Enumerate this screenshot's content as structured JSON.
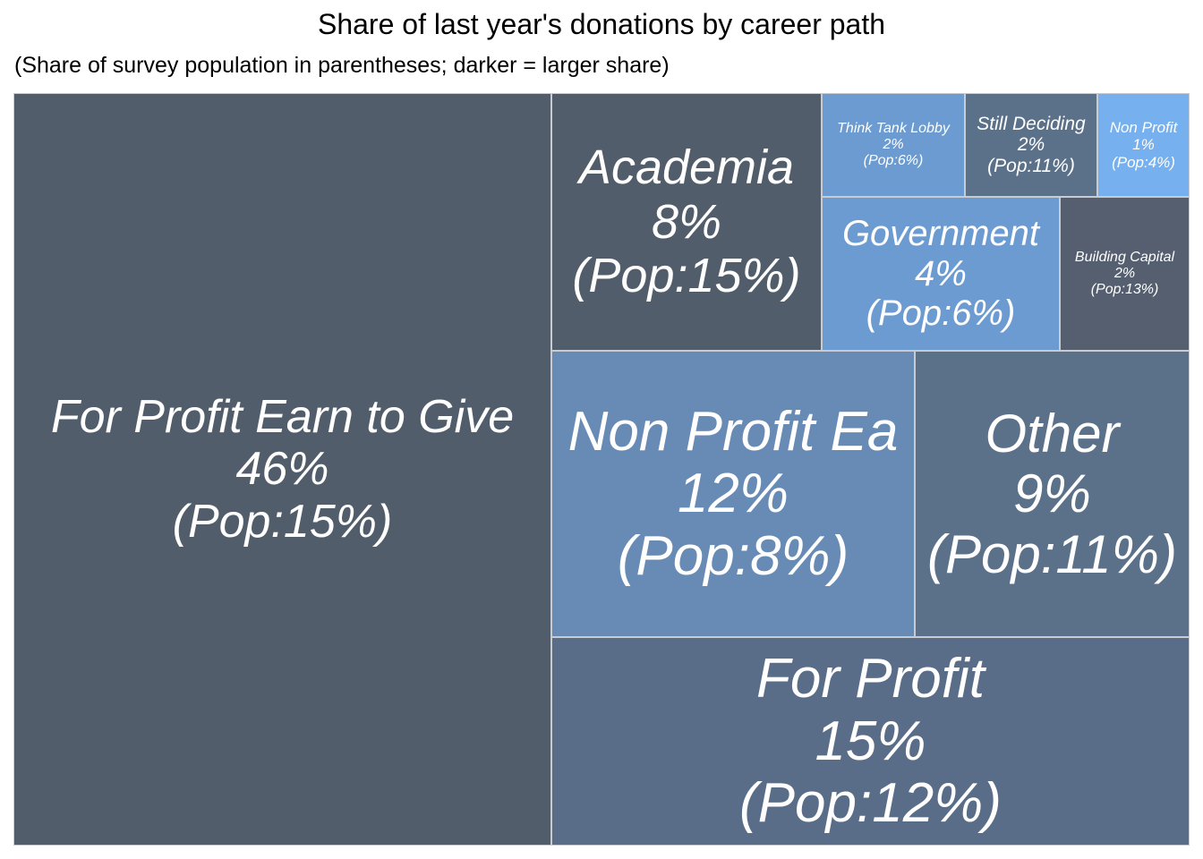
{
  "chart_data": {
    "type": "treemap",
    "title": "Share of last year's donations by career path",
    "subtitle": "(Share of survey population in parentheses; darker = larger share)",
    "items": [
      {
        "label": "For Profit Earn to Give",
        "donation_share": "46%",
        "population": "(Pop:15%)",
        "value": 46,
        "pop": 15,
        "color": "#525d6b"
      },
      {
        "label": "Academia",
        "donation_share": "8%",
        "population": "(Pop:15%)",
        "value": 8,
        "pop": 15,
        "color": "#525d6b"
      },
      {
        "label": "Think Tank Lobby",
        "donation_share": "2%",
        "population": "(Pop:6%)",
        "value": 2,
        "pop": 6,
        "color": "#6b9bd0"
      },
      {
        "label": "Still Deciding",
        "donation_share": "2%",
        "population": "(Pop:11%)",
        "value": 2,
        "pop": 11,
        "color": "#5b7089"
      },
      {
        "label": "Non Profit",
        "donation_share": "1%",
        "population": "(Pop:4%)",
        "value": 1,
        "pop": 4,
        "color": "#76b0ee"
      },
      {
        "label": "Government",
        "donation_share": "4%",
        "population": "(Pop:6%)",
        "value": 4,
        "pop": 6,
        "color": "#6b9bd0"
      },
      {
        "label": "Building Capital",
        "donation_share": "2%",
        "population": "(Pop:13%)",
        "value": 2,
        "pop": 13,
        "color": "#555f6f"
      },
      {
        "label": "Non Profit Ea",
        "donation_share": "12%",
        "population": "(Pop:8%)",
        "value": 12,
        "pop": 8,
        "color": "#678bb4"
      },
      {
        "label": "Other",
        "donation_share": "9%",
        "population": "(Pop:11%)",
        "value": 9,
        "pop": 11,
        "color": "#5b7089"
      },
      {
        "label": "For Profit",
        "donation_share": "15%",
        "population": "(Pop:12%)",
        "value": 15,
        "pop": 12,
        "color": "#596d88"
      }
    ]
  }
}
